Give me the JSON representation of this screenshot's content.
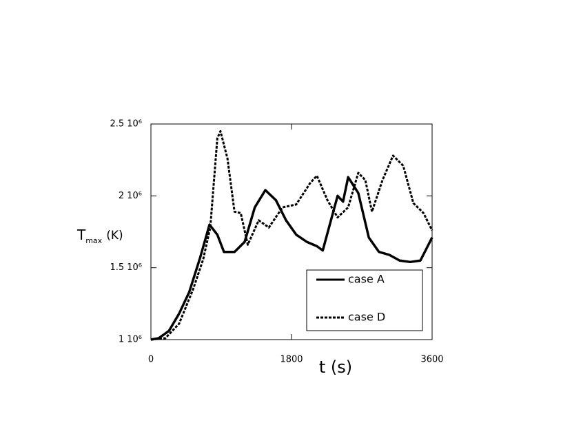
{
  "chart_data": {
    "type": "line",
    "ylabel": "T",
    "ylabel_sub": "max",
    "ylabel_unit": "(K)",
    "xlabel": "t (s)",
    "xlim": [
      0,
      3600
    ],
    "xticks": [
      0,
      1800,
      3600
    ],
    "ylim": [
      1000000,
      2500000
    ],
    "yticks": [
      {
        "value": 1000000,
        "label": "1 10⁶"
      },
      {
        "value": 1500000,
        "label": "1.5 10⁶"
      },
      {
        "value": 2000000,
        "label": "2 10⁶"
      },
      {
        "value": 2500000,
        "label": "2.5 10⁶"
      }
    ],
    "legend": "lower right",
    "series": [
      {
        "name": "case A",
        "color": "#000000",
        "dash": "solid",
        "x": [
          0,
          100,
          230,
          360,
          490,
          630,
          750,
          850,
          935,
          1070,
          1200,
          1330,
          1465,
          1600,
          1730,
          1860,
          1995,
          2125,
          2200,
          2390,
          2460,
          2525,
          2655,
          2790,
          2920,
          3050,
          3185,
          3320,
          3450,
          3600
        ],
        "values": [
          1000000,
          1010000,
          1060000,
          1180000,
          1330000,
          1570000,
          1800000,
          1730000,
          1610000,
          1610000,
          1680000,
          1920000,
          2040000,
          1970000,
          1830000,
          1730000,
          1680000,
          1650000,
          1620000,
          2000000,
          1960000,
          2130000,
          2020000,
          1710000,
          1610000,
          1590000,
          1550000,
          1540000,
          1550000,
          1710000
        ]
      },
      {
        "name": "case D",
        "color": "#000000",
        "dash": "dashed",
        "x": [
          0,
          185,
          360,
          540,
          670,
          760,
          850,
          890,
          980,
          1070,
          1150,
          1240,
          1380,
          1510,
          1685,
          1860,
          2040,
          2125,
          2260,
          2390,
          2525,
          2655,
          2745,
          2830,
          2965,
          3100,
          3230,
          3360,
          3490,
          3600
        ],
        "values": [
          1000000,
          1010000,
          1110000,
          1350000,
          1560000,
          1780000,
          2400000,
          2450000,
          2260000,
          1890000,
          1880000,
          1660000,
          1830000,
          1780000,
          1920000,
          1940000,
          2090000,
          2140000,
          1970000,
          1850000,
          1920000,
          2160000,
          2110000,
          1890000,
          2110000,
          2280000,
          2210000,
          1950000,
          1880000,
          1760000
        ]
      }
    ]
  }
}
